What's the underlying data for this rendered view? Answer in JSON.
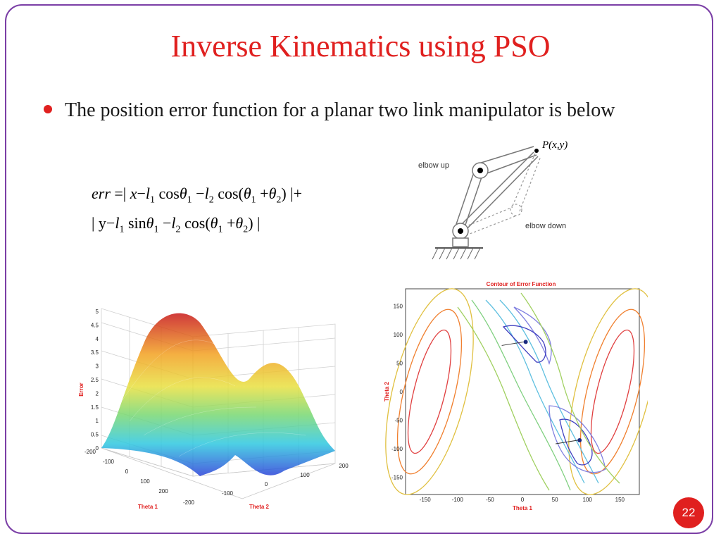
{
  "title": "Inverse Kinematics using PSO",
  "bullet": "The position error function for a planar two link manipulator is below",
  "equation": {
    "line1": {
      "lhs": "err",
      "eq": "=|",
      "x": "x",
      "minus": "−",
      "l": "l",
      "sub1": "1",
      "sub2": "2",
      "cos": "cos",
      "sin": "sin",
      "theta": "θ",
      "open": "(",
      "plus": "+",
      "close": ")",
      "tail": "|+"
    },
    "line2": {
      "start": "| y",
      "tail": "|"
    }
  },
  "diagram": {
    "point_label": "P(x,y)",
    "elbow_up": "elbow up",
    "elbow_down": "elbow down"
  },
  "surface_plot": {
    "zlabel": "Error",
    "xlabel": "Theta 1",
    "ylabel": "Theta 2",
    "z_ticks": [
      "5",
      "4.5",
      "4",
      "3.5",
      "3",
      "2.5",
      "2",
      "1.5",
      "1",
      "0.5",
      "0"
    ],
    "x_ticks": [
      "-200",
      "-100",
      "0",
      "100",
      "200"
    ],
    "y_ticks": [
      "-200",
      "-100",
      "0",
      "100",
      "200"
    ]
  },
  "chart_data": {
    "type": "contour",
    "title": "Contour of Error Function",
    "xlabel": "Theta 1",
    "ylabel": "Theta 2",
    "x_ticks": [
      "-150",
      "-100",
      "-50",
      "0",
      "50",
      "100",
      "150"
    ],
    "y_ticks": [
      "150",
      "100",
      "50",
      "0",
      "-50",
      "-100",
      "-150"
    ],
    "xlim": [
      -180,
      180
    ],
    "ylim": [
      -180,
      180
    ],
    "markers": [
      {
        "x": 5,
        "y": 87
      },
      {
        "x": 88,
        "y": -85
      }
    ]
  },
  "page_number": "22",
  "colors": {
    "title": "#e0201f",
    "frame": "#7b3fa6",
    "badge": "#e0201f"
  }
}
